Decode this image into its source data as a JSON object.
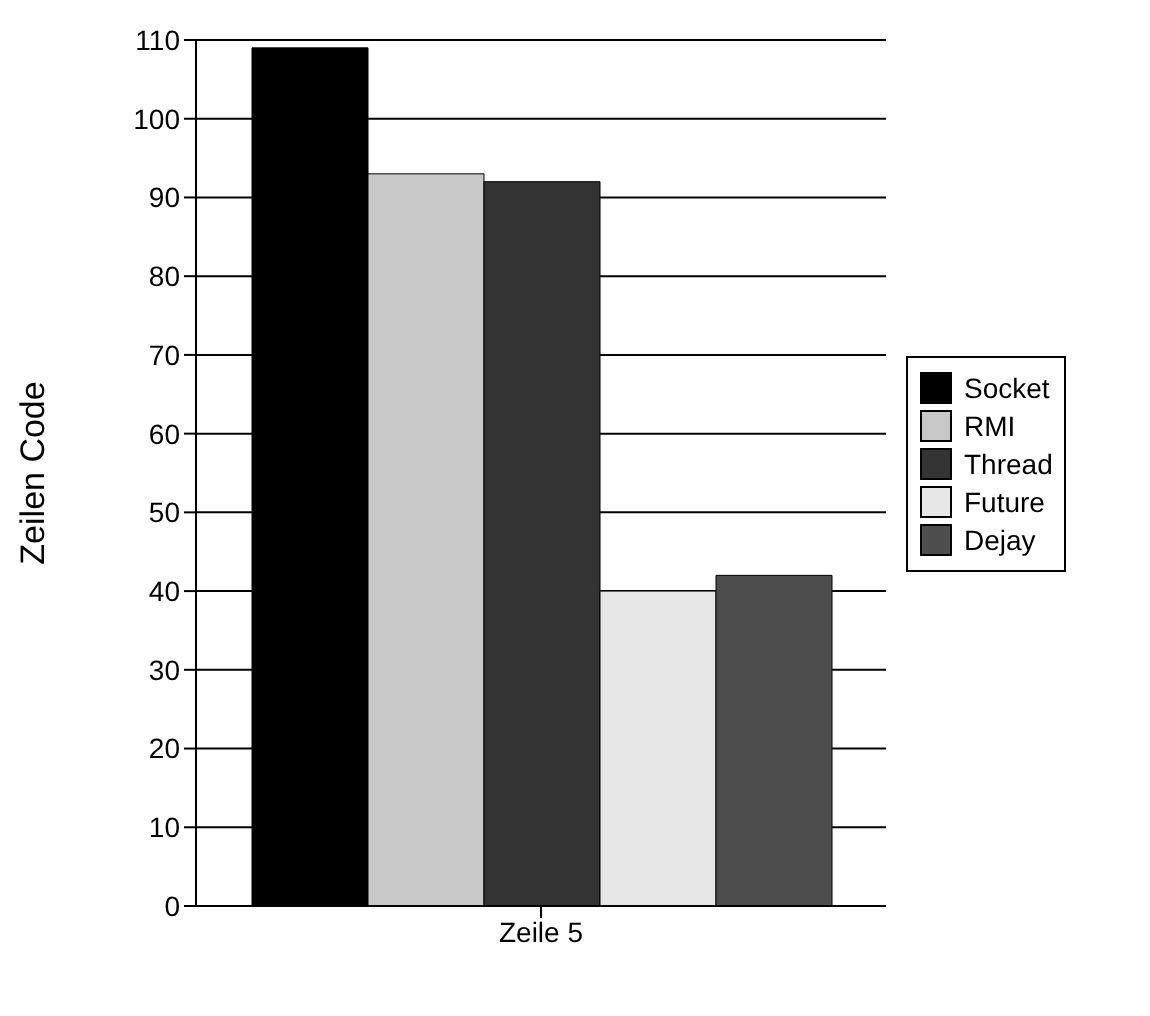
{
  "chart_data": {
    "type": "bar",
    "categories": [
      "Zeile 5"
    ],
    "ylabel": "Zeilen Code",
    "ylim": [
      0,
      110
    ],
    "yticks": [
      0,
      10,
      20,
      30,
      40,
      50,
      60,
      70,
      80,
      90,
      100,
      110
    ],
    "grid": "y",
    "legend": "right",
    "series": [
      {
        "name": "Socket",
        "color": "#000000",
        "values": [
          109
        ]
      },
      {
        "name": "RMI",
        "color": "#c8c8c8",
        "values": [
          93
        ]
      },
      {
        "name": "Thread",
        "color": "#333333",
        "values": [
          92
        ]
      },
      {
        "name": "Future",
        "color": "#e6e6e6",
        "values": [
          40
        ]
      },
      {
        "name": "Dejay",
        "color": "#4d4d4d",
        "values": [
          42
        ]
      }
    ]
  }
}
